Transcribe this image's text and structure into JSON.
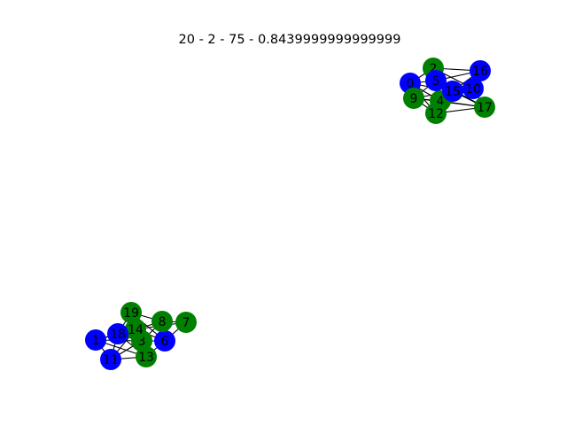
{
  "figure": {
    "title": "20 - 2 - 75 - 0.8439999999999999"
  },
  "graph": {
    "colors": {
      "green": "#008000",
      "blue": "#0000ff",
      "edge": "#000000"
    },
    "nodes": [
      {
        "id": "0",
        "color": "blue"
      },
      {
        "id": "1",
        "color": "blue"
      },
      {
        "id": "2",
        "color": "green"
      },
      {
        "id": "3",
        "color": "green"
      },
      {
        "id": "4",
        "color": "green"
      },
      {
        "id": "5",
        "color": "blue"
      },
      {
        "id": "6",
        "color": "blue"
      },
      {
        "id": "7",
        "color": "green"
      },
      {
        "id": "8",
        "color": "green"
      },
      {
        "id": "9",
        "color": "green"
      },
      {
        "id": "10",
        "color": "blue"
      },
      {
        "id": "11",
        "color": "blue"
      },
      {
        "id": "12",
        "color": "green"
      },
      {
        "id": "13",
        "color": "green"
      },
      {
        "id": "14",
        "color": "green"
      },
      {
        "id": "15",
        "color": "blue"
      },
      {
        "id": "16",
        "color": "blue"
      },
      {
        "id": "17",
        "color": "green"
      },
      {
        "id": "18",
        "color": "blue"
      },
      {
        "id": "19",
        "color": "green"
      }
    ],
    "edges": [
      [
        "2",
        "16"
      ],
      [
        "2",
        "5"
      ],
      [
        "2",
        "10"
      ],
      [
        "2",
        "15"
      ],
      [
        "2",
        "0"
      ],
      [
        "2",
        "4"
      ],
      [
        "0",
        "5"
      ],
      [
        "0",
        "9"
      ],
      [
        "0",
        "4"
      ],
      [
        "0",
        "15"
      ],
      [
        "5",
        "16"
      ],
      [
        "5",
        "10"
      ],
      [
        "5",
        "17"
      ],
      [
        "5",
        "12"
      ],
      [
        "5",
        "9"
      ],
      [
        "5",
        "15"
      ],
      [
        "16",
        "10"
      ],
      [
        "16",
        "15"
      ],
      [
        "15",
        "10"
      ],
      [
        "15",
        "17"
      ],
      [
        "15",
        "12"
      ],
      [
        "15",
        "4"
      ],
      [
        "10",
        "17"
      ],
      [
        "10",
        "4"
      ],
      [
        "9",
        "4"
      ],
      [
        "9",
        "12"
      ],
      [
        "9",
        "17"
      ],
      [
        "9",
        "15"
      ],
      [
        "4",
        "12"
      ],
      [
        "4",
        "17"
      ],
      [
        "12",
        "17"
      ],
      [
        "12",
        "0"
      ],
      [
        "19",
        "8"
      ],
      [
        "19",
        "14"
      ],
      [
        "19",
        "6"
      ],
      [
        "19",
        "3"
      ],
      [
        "19",
        "18"
      ],
      [
        "8",
        "7"
      ],
      [
        "8",
        "14"
      ],
      [
        "8",
        "6"
      ],
      [
        "8",
        "3"
      ],
      [
        "7",
        "6"
      ],
      [
        "7",
        "14"
      ],
      [
        "14",
        "6"
      ],
      [
        "14",
        "3"
      ],
      [
        "14",
        "18"
      ],
      [
        "14",
        "1"
      ],
      [
        "14",
        "11"
      ],
      [
        "14",
        "13"
      ],
      [
        "3",
        "6"
      ],
      [
        "3",
        "18"
      ],
      [
        "3",
        "11"
      ],
      [
        "3",
        "13"
      ],
      [
        "3",
        "1"
      ],
      [
        "6",
        "13"
      ],
      [
        "18",
        "1"
      ],
      [
        "18",
        "11"
      ],
      [
        "18",
        "13"
      ],
      [
        "1",
        "11"
      ],
      [
        "1",
        "13"
      ],
      [
        "11",
        "13"
      ]
    ]
  }
}
